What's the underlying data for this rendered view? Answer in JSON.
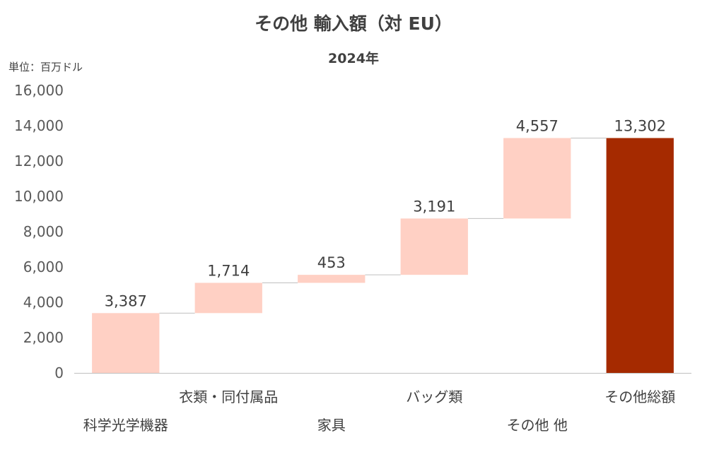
{
  "chart_data": {
    "type": "bar",
    "subtype": "waterfall",
    "title": "その他 輸入額（対 EU）",
    "subtitle": "2024年",
    "unit_label": "単位：百万ドル",
    "categories": [
      "科学光学機器",
      "衣類・同付属品",
      "家具",
      "バッグ類",
      "その他 他",
      "その他総額"
    ],
    "values": [
      3387,
      1714,
      453,
      3191,
      4557,
      13302
    ],
    "value_labels": [
      "3,387",
      "1,714",
      "453",
      "3,191",
      "4,557",
      "13,302"
    ],
    "is_total": [
      false,
      false,
      false,
      false,
      false,
      true
    ],
    "ylim": [
      0,
      16000
    ],
    "yticks": [
      0,
      2000,
      4000,
      6000,
      8000,
      10000,
      12000,
      14000,
      16000
    ],
    "ytick_labels": [
      "0",
      "2,000",
      "4,000",
      "6,000",
      "8,000",
      "10,000",
      "12,000",
      "14,000",
      "16,000"
    ],
    "grid": false,
    "colors": {
      "increment": "#FFD0C4",
      "total": "#A52A00",
      "connector": "#BFBFBF"
    }
  }
}
